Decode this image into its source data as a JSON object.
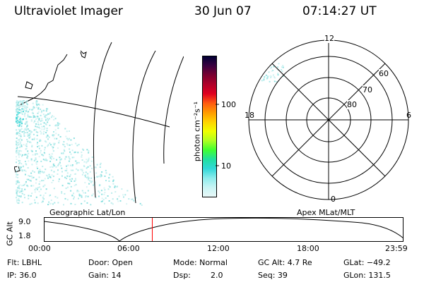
{
  "header": {
    "instrument": "Ultraviolet Imager",
    "date": "30 Jun 07",
    "time": "07:14:27 UT"
  },
  "colorbar": {
    "unit_label": "photon cm⁻²s⁻¹",
    "ticks": [
      "100",
      "10"
    ],
    "colors": [
      "#000033",
      "#3a0040",
      "#7a0030",
      "#b0002a",
      "#e00020",
      "#ff5a10",
      "#ff9a00",
      "#ffd200",
      "#f0ff00",
      "#b0ff20",
      "#40ff30",
      "#20e0a0",
      "#30d8d8",
      "#8cecec",
      "#c8f4f4",
      "#e8f8f8"
    ]
  },
  "polar": {
    "mlt_labels": {
      "top": "12",
      "left": "18",
      "right": "6",
      "bottom": "0"
    },
    "lat_labels": [
      "60",
      "70",
      "80"
    ]
  },
  "timeline": {
    "left_label": "Geographic Lat/Lon",
    "right_label": "Apex MLat/MLT",
    "y_axis_label": "GC Alt",
    "y_ticks": [
      "9.0",
      "1.8"
    ],
    "x_ticks": [
      "00:00",
      "06:00",
      "12:00",
      "18:00",
      "23:59"
    ],
    "current_time_fraction": 0.3016,
    "marker_color": "#ff0000"
  },
  "footer": {
    "filter": "Flt: LBHL",
    "ip": "IP: 36.0",
    "door": "Door: Open",
    "gain": "Gain: 14",
    "mode": "Mode: Normal",
    "dsp_label": "Dsp:",
    "dsp_value": "2.0",
    "gc_alt": "GC Alt: 4.7 Re",
    "seq": "Seq: 39",
    "glat": "GLat: −49.2",
    "glon": "GLon: 131.5"
  }
}
